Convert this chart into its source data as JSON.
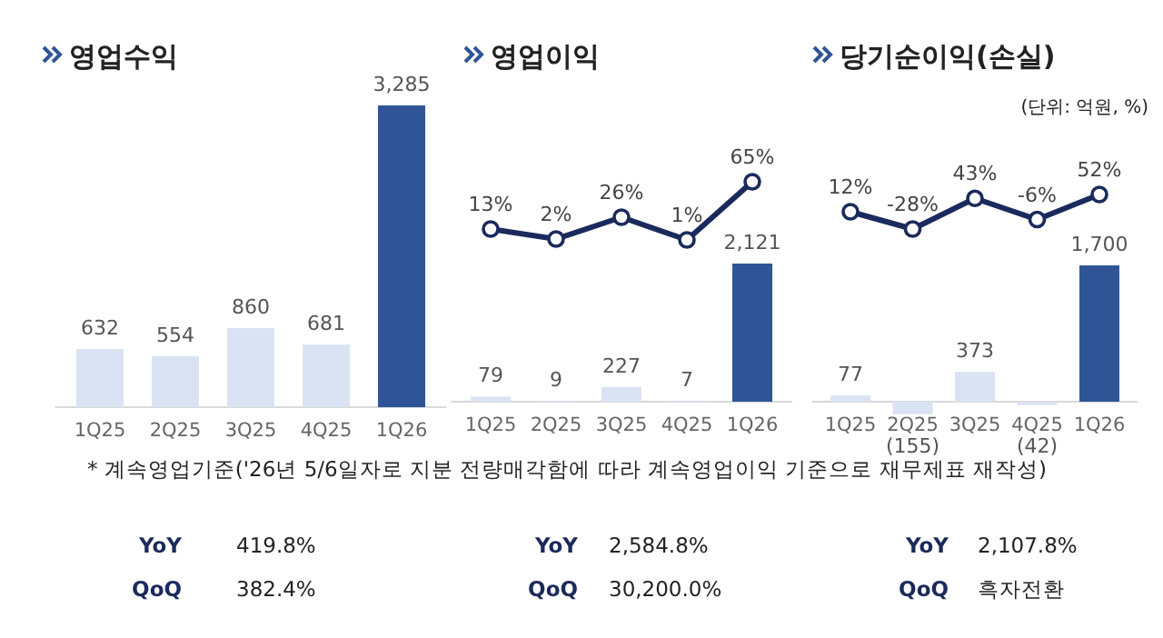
{
  "chart_data": [
    {
      "type": "bar",
      "title": "영업수익",
      "categories": [
        "1Q25",
        "2Q25",
        "3Q25",
        "4Q25",
        "1Q26"
      ],
      "values": [
        632,
        554,
        860,
        681,
        3285
      ],
      "colors": [
        "#dae3f3",
        "#dae3f3",
        "#dae3f3",
        "#dae3f3",
        "#2f5597"
      ],
      "value_labels": [
        "632",
        "554",
        "860",
        "681",
        "3,285"
      ],
      "annotations": [
        "YoY",
        "419.8%",
        "QoQ",
        "382.4%",
        "* 계속영업기준('26년 5/6일자로 지분 전량매각함에 따라 계속영업이익 기준으로 재무제표 재작성)"
      ]
    },
    {
      "type": "line",
      "title": "영업이익",
      "categories": [
        null,
        null,
        null,
        null,
        null
      ],
      "marker": "circle",
      "color": "#1b2a5c",
      "values": [
        13,
        2,
        26,
        1,
        65
      ],
      "value_labels": [
        "13%",
        "2%",
        "26%",
        "1%",
        "65%"
      ]
    },
    {
      "type": "bar",
      "categories": [
        "1Q25",
        "2Q25",
        "3Q25",
        "4Q25",
        "1Q26"
      ],
      "values": [
        79,
        9,
        227,
        7,
        2121
      ],
      "colors": [
        "#dae3f3",
        "#dae3f3",
        "#dae3f3",
        "#dae3f3",
        "#2f5597"
      ],
      "value_labels": [
        "79",
        "9",
        "227",
        "7",
        "2,121"
      ],
      "annotations": [
        "YoY",
        "2,584.8%",
        "QoQ",
        "30,200.0%"
      ]
    },
    {
      "type": "line",
      "title": "당기순이익(손실)",
      "categories": [
        null,
        null,
        null,
        null,
        null
      ],
      "marker": "circle",
      "color": "#1b2a5c",
      "values": [
        12,
        -28,
        43,
        -6,
        52
      ],
      "value_labels": [
        "12%",
        "-28%",
        "43%",
        "-6%",
        "52%"
      ],
      "annotations": [
        "(단위: 억원, %)"
      ]
    },
    {
      "type": "bar",
      "categories": [
        "1Q25",
        "2Q25",
        "3Q25",
        "4Q25",
        "1Q26"
      ],
      "values": [
        77,
        -155,
        373,
        -42,
        1700
      ],
      "colors": [
        "#dae3f3",
        "#dae3f3",
        "#dae3f3",
        "#dae3f3",
        "#2f5597"
      ],
      "value_labels": [
        "77",
        "(155)",
        "373",
        "(42)",
        "1,700"
      ],
      "annotations": [
        "YoY",
        "2,107.8%",
        "QoQ",
        "흑자전환"
      ]
    }
  ]
}
